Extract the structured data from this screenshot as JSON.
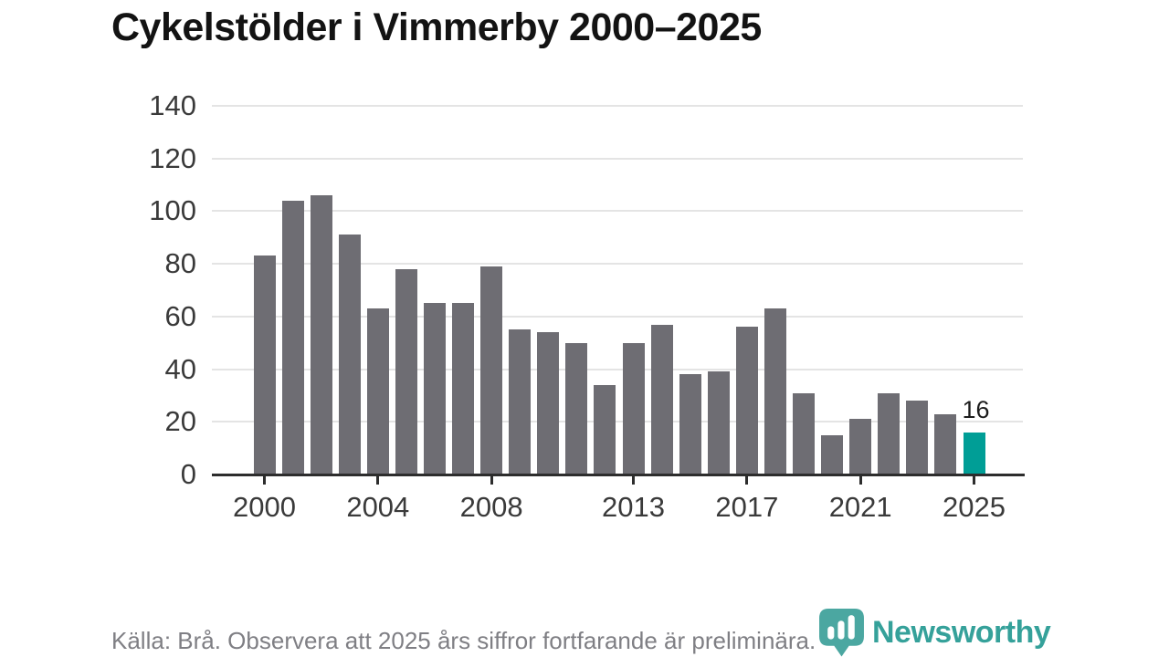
{
  "chart_data": {
    "type": "bar",
    "title": "Cykelstölder i Vimmerby 2000–2025",
    "categories": [
      2000,
      2001,
      2002,
      2003,
      2004,
      2005,
      2006,
      2007,
      2008,
      2009,
      2010,
      2011,
      2012,
      2013,
      2014,
      2015,
      2016,
      2017,
      2018,
      2019,
      2020,
      2021,
      2022,
      2023,
      2024,
      2025
    ],
    "values": [
      83,
      104,
      106,
      91,
      63,
      78,
      65,
      65,
      79,
      55,
      54,
      50,
      34,
      50,
      57,
      38,
      39,
      56,
      63,
      31,
      15,
      21,
      31,
      28,
      23,
      16
    ],
    "xlabel": "",
    "ylabel": "",
    "ylim": [
      0,
      140
    ],
    "yticks": [
      0,
      20,
      40,
      60,
      80,
      100,
      120,
      140
    ],
    "xtick_labels": [
      "2000",
      "2004",
      "2008",
      "2013",
      "2017",
      "2021",
      "2025"
    ],
    "grid": true,
    "legend": "none",
    "bar_color": "#6e6d73",
    "highlight_category": 2025,
    "highlight_color": "#009e96",
    "value_label": {
      "category": 2025,
      "text": "16"
    }
  },
  "footer": {
    "source_note": "Källa: Brå. Observera att 2025 års siffror fortfarande är preliminära."
  },
  "logo": {
    "text": "Newsworthy",
    "icon": "newsworthy-badge-icon",
    "brand_color": "#35a19a",
    "icon_color": "#4ba7a1"
  }
}
